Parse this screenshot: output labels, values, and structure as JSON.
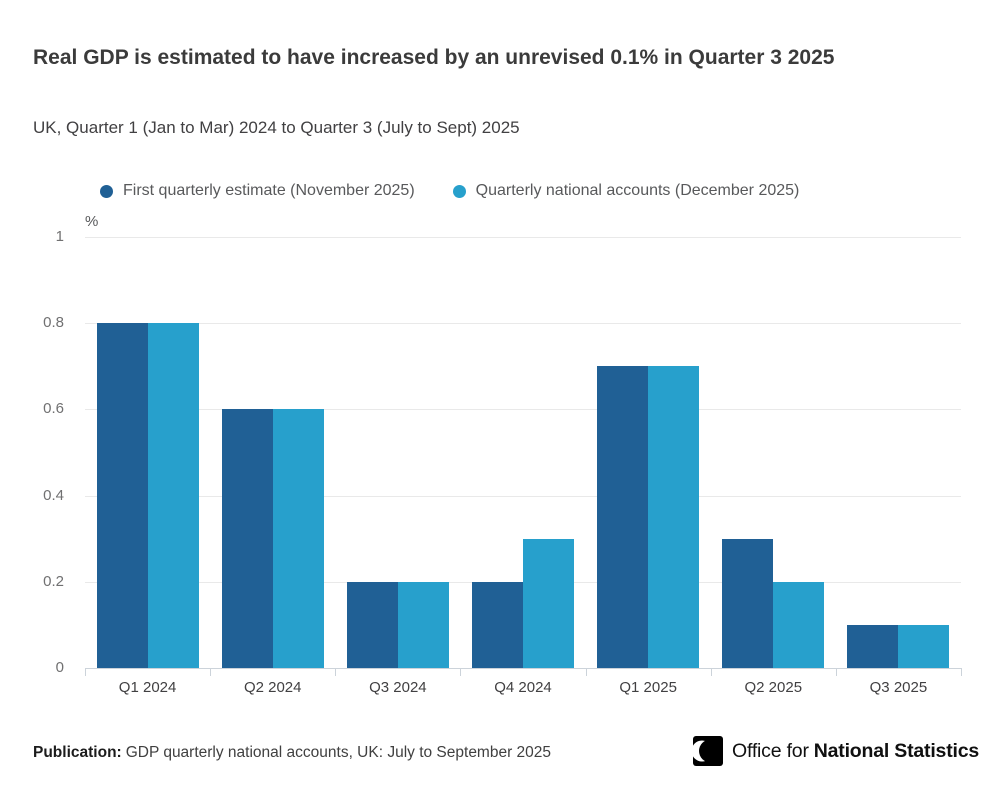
{
  "header": {
    "title": "Real GDP is estimated to have increased by an unrevised 0.1% in Quarter 3 2025",
    "subtitle": "UK, Quarter 1 (Jan to Mar) 2024 to Quarter 3 (July to Sept) 2025"
  },
  "chart_data": {
    "type": "bar",
    "title": "Real GDP is estimated to have increased by an unrevised 0.1% in Quarter 3 2025",
    "subtitle": "UK, Quarter 1 (Jan to Mar) 2024 to Quarter 3 (July to Sept) 2025",
    "ylabel": "%",
    "xlabel": "",
    "categories": [
      "Q1 2024",
      "Q2 2024",
      "Q3 2024",
      "Q4 2024",
      "Q1 2025",
      "Q2 2025",
      "Q3 2025"
    ],
    "series": [
      {
        "name": "First quarterly estimate (November 2025)",
        "color": "#206095",
        "values": [
          0.8,
          0.6,
          0.2,
          0.2,
          0.7,
          0.3,
          0.1
        ]
      },
      {
        "name": "Quarterly national accounts (December 2025)",
        "color": "#27a0cc",
        "values": [
          0.8,
          0.6,
          0.2,
          0.3,
          0.7,
          0.2,
          0.1
        ]
      }
    ],
    "ylim": [
      0,
      1
    ],
    "yticks": [
      0,
      0.2,
      0.4,
      0.6,
      0.8,
      1
    ],
    "grid": true,
    "legend_position": "top"
  },
  "footer": {
    "publication_label": "Publication:",
    "publication_text": "GDP quarterly national accounts, UK: July to September 2025",
    "logo": {
      "icon": "ons-crescent-icon",
      "office_for": "Office for",
      "national_statistics": "National Statistics"
    }
  },
  "colors": {
    "series_dark_blue": "#206095",
    "series_light_blue": "#27a0cc",
    "gridline": "#e9e9e9",
    "axis_line": "#ccd3da",
    "title_text": "#3b3b3b",
    "body_text": "#414042"
  }
}
